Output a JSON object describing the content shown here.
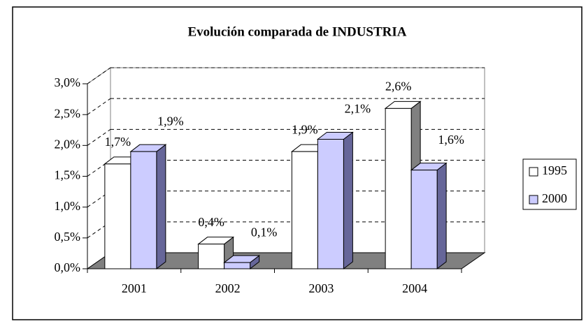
{
  "chart_data": {
    "type": "bar3d",
    "title": "Evolución comparada de INDUSTRIA",
    "categories": [
      "2001",
      "2002",
      "2003",
      "2004"
    ],
    "series": [
      {
        "name": "1995",
        "color": "#ffffff",
        "side_color": "#808080",
        "values": [
          1.7,
          0.4,
          1.9,
          2.6
        ],
        "value_labels": [
          "1,7%",
          "0,4%",
          "1,9%",
          "2,6%"
        ]
      },
      {
        "name": "2000",
        "color": "#ccccff",
        "side_color": "#666699",
        "values": [
          1.9,
          0.1,
          2.1,
          1.6
        ],
        "value_labels": [
          "1,9%",
          "0,1%",
          "2,1%",
          "1,6%"
        ]
      }
    ],
    "ylim": [
      0,
      3
    ],
    "yticks": [
      {
        "value": 0,
        "label": "0,0%"
      },
      {
        "value": 0.5,
        "label": "0,5%"
      },
      {
        "value": 1,
        "label": "1,0%"
      },
      {
        "value": 1.5,
        "label": "1,5%"
      },
      {
        "value": 2,
        "label": "2,0%"
      },
      {
        "value": 2.5,
        "label": "2,5%"
      },
      {
        "value": 3,
        "label": "3,0%"
      }
    ],
    "grid": true,
    "legend": "right"
  }
}
